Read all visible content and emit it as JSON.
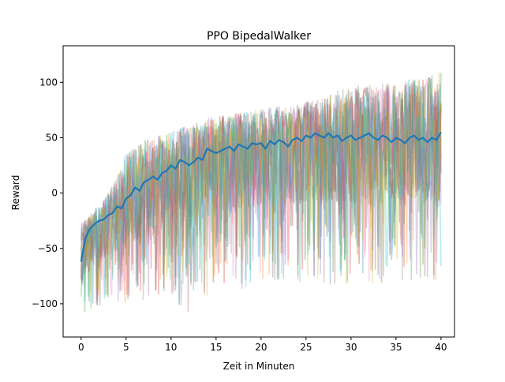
{
  "chart_data": {
    "type": "line",
    "title": "PPO BipedalWalker",
    "xlabel": "Zeit in Minuten",
    "ylabel": "Reward",
    "xlim": [
      -2,
      41.5
    ],
    "ylim": [
      -130,
      133
    ],
    "xticks": [
      0,
      5,
      10,
      15,
      20,
      25,
      30,
      35,
      40
    ],
    "xtick_labels": [
      "0",
      "5",
      "10",
      "15",
      "20",
      "25",
      "30",
      "35",
      "40"
    ],
    "yticks": [
      -100,
      -50,
      0,
      50,
      100
    ],
    "ytick_labels": [
      "−100",
      "−50",
      "0",
      "50",
      "100"
    ],
    "grid": false,
    "legend": "none",
    "background_runs": {
      "count": 10,
      "alpha": 0.3,
      "colors": [
        "#1f77b4",
        "#ff7f0e",
        "#2ca02c",
        "#d62728",
        "#9467bd",
        "#8c564b",
        "#e377c2",
        "#7f7f7f",
        "#bcbd22",
        "#17becf"
      ],
      "upper_envelope": {
        "x": [
          0,
          2,
          4,
          5,
          7,
          10,
          13,
          15,
          20,
          25,
          27,
          28,
          30,
          35,
          40
        ],
        "y": [
          -20,
          -10,
          20,
          45,
          55,
          62,
          70,
          75,
          82,
          88,
          92,
          100,
          105,
          108,
          120
        ]
      },
      "lower_envelope": {
        "x": [
          0,
          2,
          4,
          6,
          8,
          10,
          12,
          15,
          20,
          25,
          30,
          35,
          40
        ],
        "y": [
          -110,
          -110,
          -105,
          -100,
          -95,
          -95,
          -110,
          -90,
          -85,
          -80,
          -85,
          -80,
          -80
        ]
      }
    },
    "series": [
      {
        "color": "#1f77b4",
        "x": [
          0,
          0.5,
          1,
          1.5,
          2,
          2.5,
          3,
          3.5,
          4,
          4.5,
          5,
          5.5,
          6,
          6.5,
          7,
          7.5,
          8,
          8.5,
          9,
          9.5,
          10,
          10.5,
          11,
          11.5,
          12,
          12.5,
          13,
          13.5,
          14,
          14.5,
          15,
          15.5,
          16,
          16.5,
          17,
          17.5,
          18,
          18.5,
          19,
          19.5,
          20,
          20.5,
          21,
          21.5,
          22,
          22.5,
          23,
          23.5,
          24,
          24.5,
          25,
          25.5,
          26,
          26.5,
          27,
          27.5,
          28,
          28.5,
          29,
          29.5,
          30,
          30.5,
          31,
          31.5,
          32,
          32.5,
          33,
          33.5,
          34,
          34.5,
          35,
          35.5,
          36,
          36.5,
          37,
          37.5,
          38,
          38.5,
          39,
          39.5,
          40
        ],
        "y": [
          -62,
          -40,
          -32,
          -28,
          -25,
          -24,
          -20,
          -18,
          -12,
          -14,
          -5,
          -2,
          5,
          2,
          10,
          12,
          15,
          12,
          18,
          20,
          25,
          22,
          30,
          28,
          25,
          28,
          32,
          30,
          40,
          38,
          36,
          38,
          40,
          42,
          38,
          44,
          42,
          40,
          45,
          44,
          45,
          40,
          47,
          44,
          48,
          46,
          42,
          48,
          50,
          47,
          52,
          50,
          54,
          52,
          50,
          54,
          50,
          52,
          47,
          50,
          52,
          48,
          50,
          52,
          54,
          50,
          48,
          52,
          50,
          46,
          50,
          48,
          45,
          50,
          52,
          48,
          50,
          46,
          50,
          48,
          55
        ]
      }
    ]
  }
}
